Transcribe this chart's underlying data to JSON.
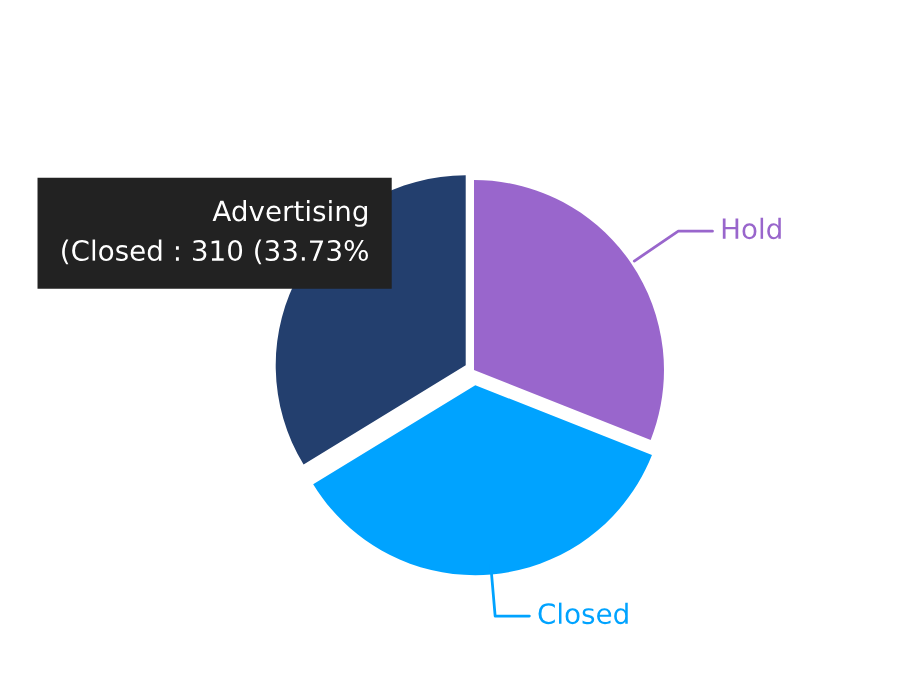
{
  "chart_data": {
    "type": "pie",
    "categories": [
      "Hold",
      "Closed",
      "Advertising"
    ],
    "values": [
      31,
      35.27,
      33.73
    ],
    "colors": [
      "#9966cc",
      "#00a3ff",
      "#233f6e"
    ],
    "annotations": [
      "(Closed : 310 (33.73%"
    ],
    "legend": false
  }
}
